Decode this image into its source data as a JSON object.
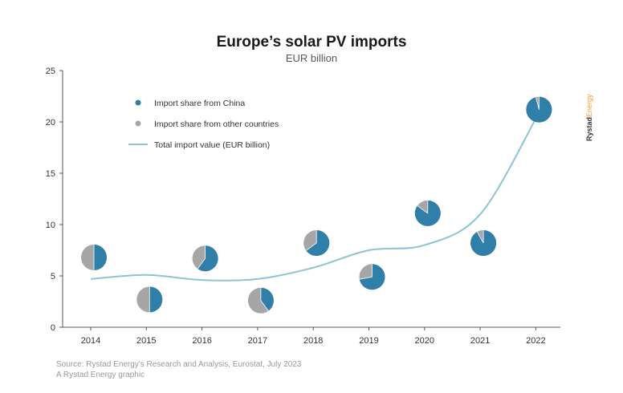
{
  "chart_data": {
    "type": "line",
    "title": "Europe’s solar PV imports",
    "subtitle": "EUR billion",
    "categories": [
      "2014",
      "2015",
      "2016",
      "2017",
      "2018",
      "2019",
      "2020",
      "2021",
      "2022"
    ],
    "series": [
      {
        "name": "Total import value (EUR billion)",
        "values": [
          4.7,
          5.1,
          4.6,
          4.7,
          5.8,
          7.5,
          8.0,
          11.0,
          20.3
        ]
      }
    ],
    "pies": {
      "positions": [
        6.8,
        2.7,
        6.7,
        2.6,
        8.2,
        4.9,
        11.1,
        8.2,
        21.2
      ],
      "china_share": [
        0.5,
        0.5,
        0.6,
        0.4,
        0.65,
        0.72,
        0.85,
        0.92,
        0.96
      ]
    },
    "yticks": [
      "0",
      "5",
      "10",
      "15",
      "20",
      "25"
    ],
    "ylim": [
      0,
      25
    ],
    "grid": false,
    "legend": {
      "placement": "top-left",
      "items": [
        {
          "label": "Import share from China",
          "kind": "dot",
          "color": "#2f7fa8"
        },
        {
          "label": "Import share from other countries",
          "kind": "dot",
          "color": "#a6a6a6"
        },
        {
          "label": "Total import value (EUR billion)",
          "kind": "line",
          "color": "#8ec3d3"
        }
      ]
    }
  },
  "colors": {
    "china": "#2f7fa8",
    "other": "#a6a6a6",
    "line": "#8ec3d3",
    "axis": "#555555"
  },
  "footer": {
    "source": "Source: Rystad Energy's Research and Analysis, Eurostat, July 2023",
    "credit": "A Rystad Energy graphic"
  },
  "brand": {
    "name": "Rystad",
    "suffix": "Energy"
  }
}
